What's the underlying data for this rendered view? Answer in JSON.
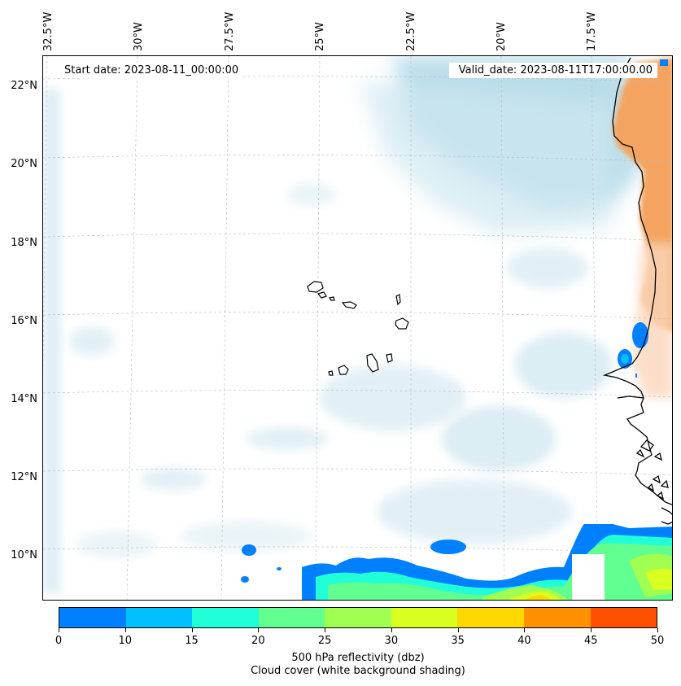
{
  "header": {
    "start_date": "Start date: 2023-08-11_00:00:00",
    "valid_date": "Valid_date: 2023-08-11T17:00:00.00"
  },
  "axes": {
    "lat_labels": [
      "22°N",
      "20°N",
      "18°N",
      "16°N",
      "14°N",
      "12°N",
      "10°N"
    ],
    "lon_labels": [
      "32.5°W",
      "30°W",
      "27.5°W",
      "25°W",
      "22.5°W",
      "20°W",
      "17.5°W"
    ]
  },
  "colorbar": {
    "ticks": [
      "0",
      "10",
      "15",
      "20",
      "25",
      "30",
      "35",
      "40",
      "45",
      "50"
    ],
    "colors": [
      "#0080ff",
      "#00c0ff",
      "#20ffd8",
      "#60ff90",
      "#a0ff50",
      "#d8ff20",
      "#ffd800",
      "#ff9000",
      "#ff5000"
    ],
    "title_line1": "500 hPa reflectivity (dbz)",
    "title_line2": "Cloud cover (white background shading)"
  },
  "colors": {
    "land_dust": "#f4a460",
    "cloud": "#add8e6",
    "coast": "#000000"
  }
}
